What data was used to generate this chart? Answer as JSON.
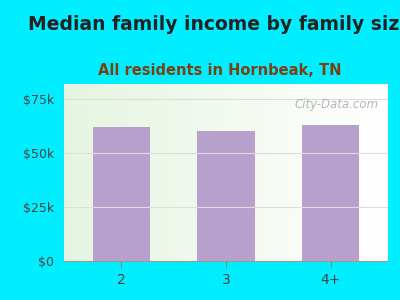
{
  "title": "Median family income by family size",
  "subtitle": "All residents in Hornbeak, TN",
  "categories": [
    "2",
    "3",
    "4+"
  ],
  "values": [
    62000,
    60000,
    63000
  ],
  "bar_color": "#b8a0cc",
  "background_color": "#00eeff",
  "title_color": "#222222",
  "subtitle_color": "#7a4010",
  "yticks": [
    0,
    25000,
    50000,
    75000
  ],
  "ytick_labels": [
    "$0",
    "$25k",
    "$50k",
    "$75k"
  ],
  "ylim": [
    0,
    82000
  ],
  "title_fontsize": 13.5,
  "subtitle_fontsize": 10.5,
  "tick_fontsize": 9,
  "watermark_text": "City-Data.com",
  "watermark_color": "#aaaaaa",
  "grid_color": "#dddddd"
}
